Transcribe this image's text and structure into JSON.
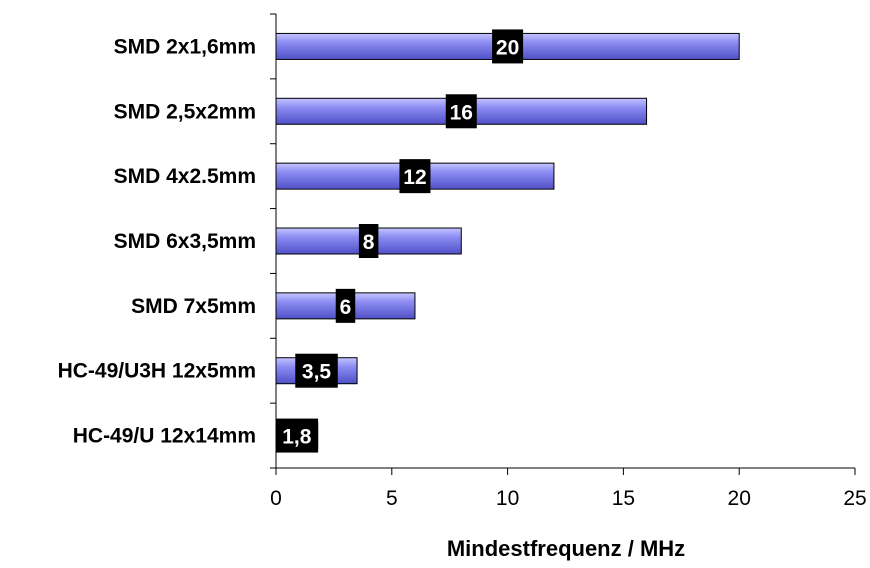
{
  "chart_data": {
    "type": "bar",
    "orientation": "horizontal",
    "categories": [
      "SMD 2x1,6mm",
      "SMD 2,5x2mm",
      "SMD 4x2.5mm",
      "SMD 6x3,5mm",
      "SMD 7x5mm",
      "HC-49/U3H 12x5mm",
      "HC-49/U 12x14mm"
    ],
    "values": [
      20,
      16,
      12,
      8,
      6,
      3.5,
      1.8
    ],
    "data_labels": [
      "20",
      "16",
      "12",
      "8",
      "6",
      "3,5",
      "1,8"
    ],
    "title": "",
    "xlabel": "Mindestfrequenz / MHz",
    "ylabel": "",
    "xlim": [
      0,
      25
    ],
    "x_ticks": [
      0,
      5,
      10,
      15,
      20,
      25
    ],
    "x_tick_labels": [
      "0",
      "5",
      "10",
      "15",
      "20",
      "25"
    ],
    "grid": false,
    "legend": "none",
    "colors": {
      "bar_fill": "#8c8cf2",
      "bar_highlight": "#c4c4ff",
      "bar_shadow": "#5050c8",
      "bar_stroke": "#000000",
      "label_box": "#000000",
      "label_text": "#ffffff"
    }
  }
}
